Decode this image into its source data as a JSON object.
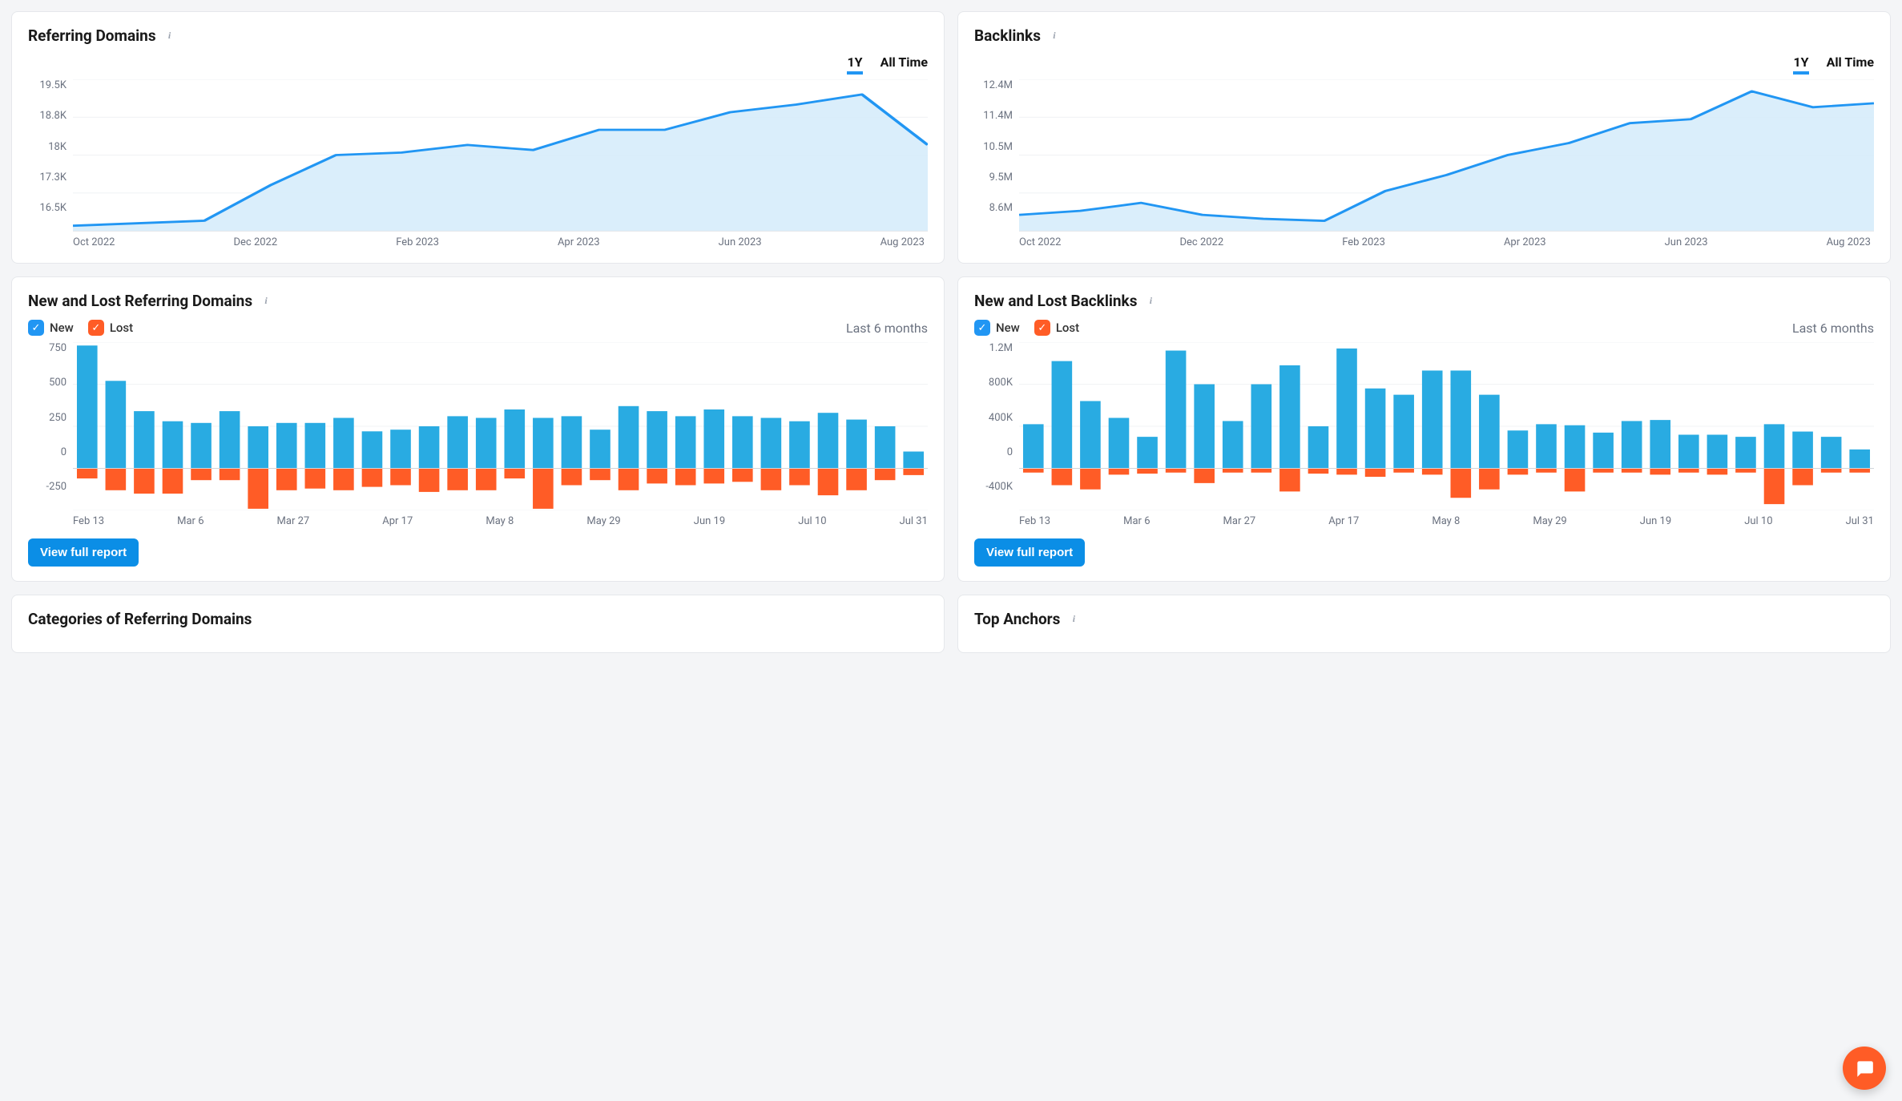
{
  "colors": {
    "line": "#2196f3",
    "area_fill": "#d6ecfb",
    "bar_new": "#29abe2",
    "bar_lost": "#ff5c26",
    "grid": "#f1f3f5",
    "axis_text": "#6b7280",
    "btn_bg": "#0b8ee6",
    "fab_bg": "#ff5c26"
  },
  "time_tabs": {
    "y1": "1Y",
    "all": "All Time",
    "active": "1Y"
  },
  "referring_domains": {
    "title": "Referring Domains",
    "y_ticks": [
      "19.5K",
      "18.8K",
      "18K",
      "17.3K",
      "16.5K"
    ],
    "x_ticks": [
      "Oct 2022",
      "Dec 2022",
      "Feb 2023",
      "Apr 2023",
      "Jun 2023",
      "Aug 2023"
    ],
    "y_min": 16500,
    "y_max": 19500,
    "values": [
      16600,
      16650,
      16700,
      17400,
      18000,
      18050,
      18200,
      18100,
      18500,
      18500,
      18850,
      19000,
      19200,
      18200
    ]
  },
  "backlinks": {
    "title": "Backlinks",
    "y_ticks": [
      "12.4M",
      "11.4M",
      "10.5M",
      "9.5M",
      "8.6M"
    ],
    "x_ticks": [
      "Oct 2022",
      "Dec 2022",
      "Feb 2023",
      "Apr 2023",
      "Jun 2023",
      "Aug 2023"
    ],
    "y_min": 8600000,
    "y_max": 12400000,
    "values": [
      9000000,
      9100000,
      9300000,
      9000000,
      8900000,
      8850000,
      9600000,
      10000000,
      10500000,
      10800000,
      11300000,
      11400000,
      12100000,
      11700000,
      11800000
    ]
  },
  "new_lost_domains": {
    "title": "New and Lost Referring Domains",
    "legend_new": "New",
    "legend_lost": "Lost",
    "period": "Last 6 months",
    "btn": "View full report",
    "y_ticks": [
      "750",
      "500",
      "250",
      "0",
      "-250"
    ],
    "y_min": -250,
    "y_max": 750,
    "x_ticks": [
      "Feb 13",
      "Mar 6",
      "Mar 27",
      "Apr 17",
      "May 8",
      "May 29",
      "Jun 19",
      "Jul 10",
      "Jul 31"
    ],
    "new": [
      730,
      520,
      340,
      280,
      270,
      340,
      250,
      270,
      270,
      300,
      220,
      230,
      250,
      310,
      300,
      350,
      300,
      310,
      230,
      370,
      340,
      310,
      350,
      310,
      300,
      280,
      330,
      290,
      250,
      100
    ],
    "lost": [
      -60,
      -130,
      -150,
      -150,
      -70,
      -70,
      -240,
      -130,
      -120,
      -130,
      -110,
      -100,
      -140,
      -130,
      -130,
      -60,
      -240,
      -100,
      -70,
      -130,
      -90,
      -100,
      -90,
      -80,
      -130,
      -100,
      -160,
      -130,
      -70,
      -40
    ]
  },
  "new_lost_backlinks": {
    "title": "New and Lost Backlinks",
    "legend_new": "New",
    "legend_lost": "Lost",
    "period": "Last 6 months",
    "btn": "View full report",
    "y_ticks": [
      "1.2M",
      "800K",
      "400K",
      "0",
      "-400K"
    ],
    "y_min": -400000,
    "y_max": 1200000,
    "x_ticks": [
      "Feb 13",
      "Mar 6",
      "Mar 27",
      "Apr 17",
      "May 8",
      "May 29",
      "Jun 19",
      "Jul 10",
      "Jul 31"
    ],
    "new": [
      420000,
      1020000,
      640000,
      480000,
      300000,
      1120000,
      800000,
      450000,
      800000,
      980000,
      400000,
      1140000,
      760000,
      700000,
      930000,
      930000,
      700000,
      360000,
      420000,
      410000,
      340000,
      450000,
      460000,
      320000,
      320000,
      300000,
      420000,
      350000,
      300000,
      180000
    ],
    "lost": [
      -40000,
      -160000,
      -200000,
      -60000,
      -50000,
      -40000,
      -140000,
      -40000,
      -40000,
      -220000,
      -50000,
      -60000,
      -80000,
      -40000,
      -60000,
      -280000,
      -200000,
      -60000,
      -40000,
      -220000,
      -40000,
      -40000,
      -60000,
      -40000,
      -60000,
      -40000,
      -340000,
      -160000,
      -40000,
      -40000
    ]
  },
  "categories": {
    "title": "Categories of Referring Domains"
  },
  "top_anchors": {
    "title": "Top Anchors"
  }
}
